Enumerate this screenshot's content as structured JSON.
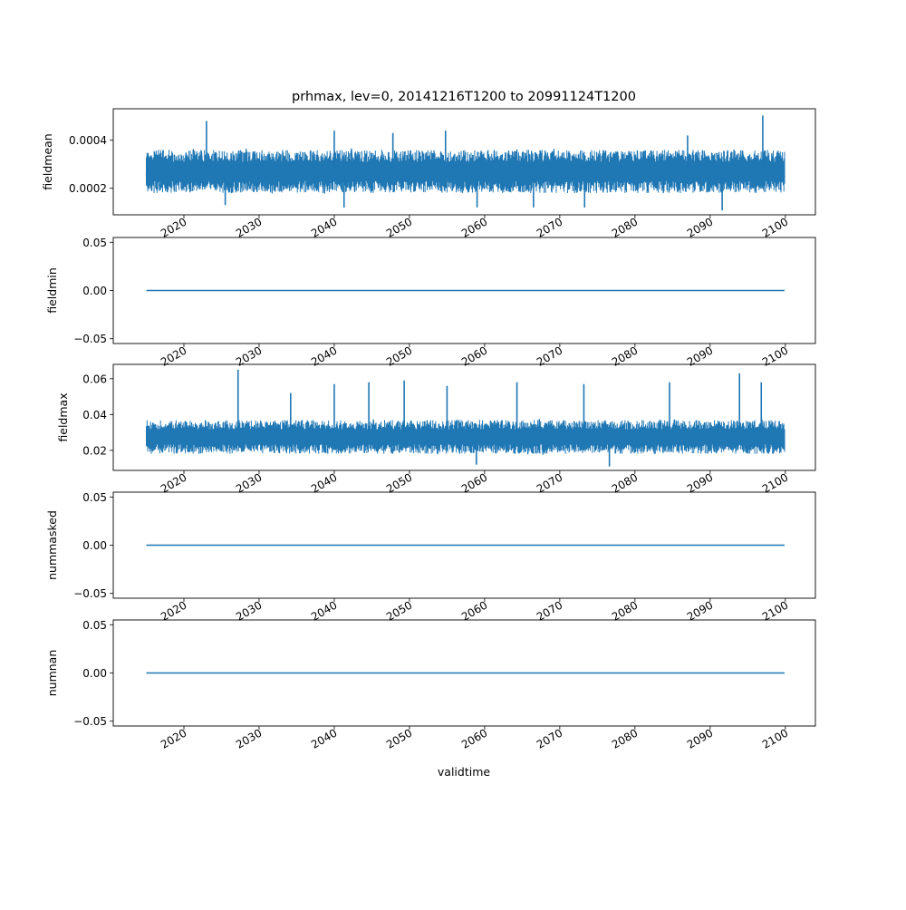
{
  "figure": {
    "title": "prhmax, lev=0, 20141216T1200 to 20991124T1200",
    "xlabel": "validtime"
  },
  "chart_data": [
    {
      "type": "line",
      "name": "fieldmean",
      "ylabel": "fieldmean",
      "x_range": [
        "2014-12-16",
        "2099-11-24"
      ],
      "xlim": [
        2010.6,
        2104.0
      ],
      "ylim": [
        8.95e-05,
        0.000531
      ],
      "yticks": [
        "0.0002",
        "0.0004"
      ],
      "ytick_values": [
        0.0002,
        0.0004
      ],
      "xticks": [
        "2020",
        "2030",
        "2040",
        "2050",
        "2060",
        "2070",
        "2080",
        "2090",
        "2100"
      ],
      "series_color": "#1f77b4",
      "typical_band": [
        0.00017,
        0.00037
      ],
      "min_value": 0.000108,
      "max_value": 0.000503,
      "spikes": [
        [
          2023.0,
          0.00048
        ],
        [
          2040.0,
          0.00044
        ],
        [
          2047.8,
          0.00043
        ],
        [
          2054.8,
          0.00044
        ],
        [
          2087.0,
          0.00042
        ],
        [
          2097.0,
          0.000503
        ]
      ],
      "dips": [
        [
          2025.5,
          0.00013
        ],
        [
          2041.3,
          0.00012
        ],
        [
          2059.0,
          0.00012
        ],
        [
          2066.5,
          0.00012
        ],
        [
          2091.6,
          0.000108
        ],
        [
          2073.3,
          0.00012
        ]
      ]
    },
    {
      "type": "line",
      "name": "fieldmin",
      "ylabel": "fieldmin",
      "x": [
        2015.0,
        2099.9
      ],
      "values": [
        0.0,
        0.0
      ],
      "xlim": [
        2010.6,
        2104.0
      ],
      "ylim": [
        -0.055,
        0.055
      ],
      "yticks": [
        "−0.05",
        "0.00",
        "0.05"
      ],
      "ytick_values": [
        -0.05,
        0.0,
        0.05
      ],
      "xticks": [
        "2020",
        "2030",
        "2040",
        "2050",
        "2060",
        "2070",
        "2080",
        "2090",
        "2100"
      ],
      "series_color": "#1f77b4"
    },
    {
      "type": "line",
      "name": "fieldmax",
      "ylabel": "fieldmax",
      "x_range": [
        "2014-12-16",
        "2099-11-24"
      ],
      "xlim": [
        2010.6,
        2104.0
      ],
      "ylim": [
        0.0088,
        0.068
      ],
      "yticks": [
        "0.02",
        "0.04",
        "0.06"
      ],
      "ytick_values": [
        0.02,
        0.04,
        0.06
      ],
      "xticks": [
        "2020",
        "2030",
        "2040",
        "2050",
        "2060",
        "2070",
        "2080",
        "2090",
        "2100"
      ],
      "series_color": "#1f77b4",
      "typical_band": [
        0.017,
        0.038
      ],
      "min_value": 0.011,
      "max_value": 0.065,
      "spikes": [
        [
          2027.2,
          0.065
        ],
        [
          2034.2,
          0.052
        ],
        [
          2040.0,
          0.057
        ],
        [
          2044.6,
          0.058
        ],
        [
          2049.3,
          0.059
        ],
        [
          2055.0,
          0.056
        ],
        [
          2064.3,
          0.058
        ],
        [
          2073.2,
          0.057
        ],
        [
          2084.6,
          0.058
        ],
        [
          2093.9,
          0.063
        ],
        [
          2096.8,
          0.058
        ]
      ],
      "dips": [
        [
          2058.9,
          0.012
        ],
        [
          2076.6,
          0.011
        ]
      ]
    },
    {
      "type": "line",
      "name": "nummasked",
      "ylabel": "nummasked",
      "x": [
        2015.0,
        2099.9
      ],
      "values": [
        0.0,
        0.0
      ],
      "xlim": [
        2010.6,
        2104.0
      ],
      "ylim": [
        -0.055,
        0.055
      ],
      "yticks": [
        "−0.05",
        "0.00",
        "0.05"
      ],
      "ytick_values": [
        -0.05,
        0.0,
        0.05
      ],
      "xticks": [
        "2020",
        "2030",
        "2040",
        "2050",
        "2060",
        "2070",
        "2080",
        "2090",
        "2100"
      ],
      "series_color": "#1f77b4"
    },
    {
      "type": "line",
      "name": "numnan",
      "ylabel": "numnan",
      "x": [
        2015.0,
        2099.9
      ],
      "values": [
        0.0,
        0.0
      ],
      "xlim": [
        2010.6,
        2104.0
      ],
      "ylim": [
        -0.055,
        0.055
      ],
      "yticks": [
        "−0.05",
        "0.00",
        "0.05"
      ],
      "ytick_values": [
        -0.05,
        0.0,
        0.05
      ],
      "xticks": [
        "2020",
        "2030",
        "2040",
        "2050",
        "2060",
        "2070",
        "2080",
        "2090",
        "2100"
      ],
      "series_color": "#1f77b4"
    }
  ]
}
